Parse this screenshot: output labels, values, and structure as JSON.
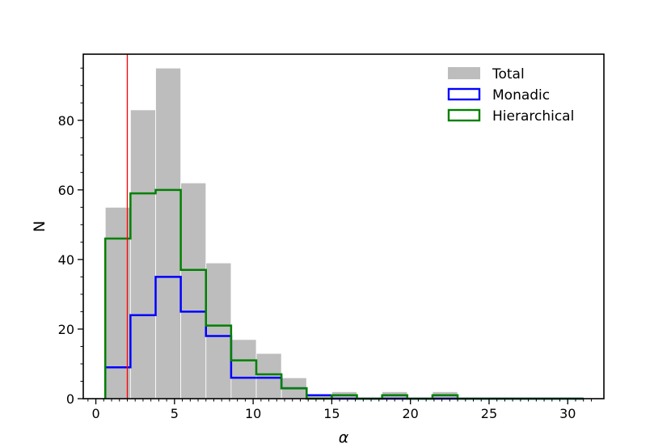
{
  "chart_data": {
    "type": "bar",
    "xlabel": "α",
    "ylabel": "N",
    "xlim": [
      -0.8,
      32.3
    ],
    "ylim": [
      0,
      99
    ],
    "x_ticks": [
      0,
      5,
      10,
      15,
      20,
      25,
      30
    ],
    "y_ticks": [
      0,
      20,
      40,
      60,
      80
    ],
    "bin_edges": [
      0.6,
      2.2,
      3.8,
      5.4,
      7.0,
      8.6,
      10.2,
      11.8,
      13.4,
      15.0,
      16.6,
      18.2,
      19.8,
      21.4,
      23.0,
      24.6,
      26.2,
      27.8,
      29.4,
      31.0
    ],
    "series": [
      {
        "name": "Total",
        "style": "filled",
        "color": "#bdbdbd",
        "values": [
          55,
          83,
          95,
          62,
          39,
          17,
          13,
          6,
          1,
          2,
          0,
          2,
          0,
          2,
          0,
          0,
          0,
          0,
          0
        ]
      },
      {
        "name": "Monadic",
        "style": "step",
        "color": "#0000ff",
        "values": [
          9,
          24,
          35,
          25,
          18,
          6,
          6,
          3,
          1,
          0,
          0,
          0,
          0,
          0,
          0,
          0,
          0,
          0,
          0
        ]
      },
      {
        "name": "Hierarchical",
        "style": "step",
        "color": "#008000",
        "values": [
          46,
          59,
          60,
          37,
          21,
          11,
          7,
          3,
          0,
          1,
          0,
          1,
          0,
          1,
          0,
          0,
          0,
          0,
          0
        ]
      }
    ],
    "vline": {
      "x": 2.0,
      "color": "#ff0000"
    },
    "legend_position": "top-right",
    "grid": false
  }
}
